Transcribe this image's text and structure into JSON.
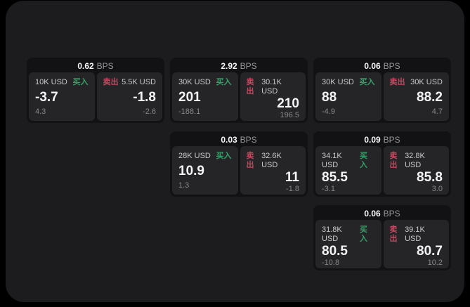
{
  "page": {
    "background": "#000000",
    "container_background": "#1c1c1e"
  },
  "colors": {
    "card_bg": "#121214",
    "panel_bg": "#252528",
    "buy_green": "#35a168",
    "sell_red": "#c4485f",
    "text_primary": "#f5f5f6",
    "text_secondary": "#c9c9cb",
    "text_muted": "#87878b"
  },
  "labels": {
    "bps": "BPS",
    "buy": "买入",
    "sell": "卖出"
  },
  "cards": [
    {
      "bps": "0.62",
      "buy": {
        "amount": "10K USD",
        "value": "-3.7",
        "delta": "4.3"
      },
      "sell": {
        "amount": "5.5K USD",
        "value": "-1.8",
        "delta": "-2.6"
      }
    },
    {
      "bps": "2.92",
      "buy": {
        "amount": "30K USD",
        "value": "201",
        "delta": "-188.1"
      },
      "sell": {
        "amount": "30.1K USD",
        "value": "210",
        "delta": "196.5"
      }
    },
    {
      "bps": "0.06",
      "buy": {
        "amount": "30K USD",
        "value": "88",
        "delta": "-4.9"
      },
      "sell": {
        "amount": "30K USD",
        "value": "88.2",
        "delta": "4.7"
      }
    },
    {
      "bps": "0.03",
      "buy": {
        "amount": "28K USD",
        "value": "10.9",
        "delta": "1.3"
      },
      "sell": {
        "amount": "32.6K USD",
        "value": "11",
        "delta": "-1.8"
      }
    },
    {
      "bps": "0.09",
      "buy": {
        "amount": "34.1K USD",
        "value": "85.5",
        "delta": "-3.1"
      },
      "sell": {
        "amount": "32.8K USD",
        "value": "85.8",
        "delta": "3.0"
      }
    },
    {
      "bps": "0.06",
      "buy": {
        "amount": "31.8K USD",
        "value": "80.5",
        "delta": "-10.8"
      },
      "sell": {
        "amount": "39.1K USD",
        "value": "80.7",
        "delta": "10.2"
      }
    }
  ]
}
